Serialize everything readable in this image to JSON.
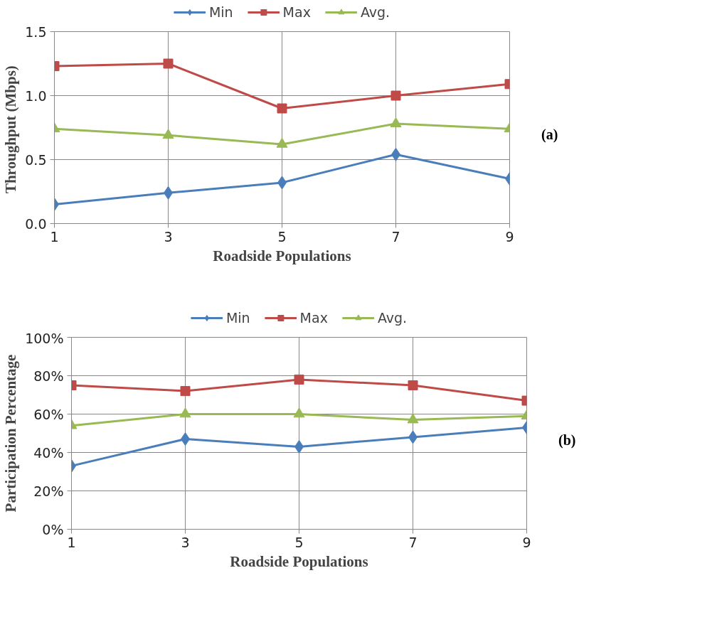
{
  "chart_data": [
    {
      "type": "line",
      "xlabel": "Roadside Populations",
      "ylabel": "Throughput  (Mbps)",
      "x": [
        1,
        3,
        5,
        7,
        9
      ],
      "xlim": [
        1,
        9
      ],
      "xticks": [
        1,
        3,
        5,
        7,
        9
      ],
      "ylim": [
        0,
        1.5
      ],
      "yticks": [
        {
          "value": 0,
          "label": "0.0"
        },
        {
          "value": 0.5,
          "label": "0.5"
        },
        {
          "value": 1,
          "label": "1.0"
        },
        {
          "value": 1.5,
          "label": "1.5"
        }
      ],
      "grid": true,
      "legend": "top",
      "annotations": [
        "(a)"
      ],
      "series": [
        {
          "name": "Min",
          "color": "#4a7ebb",
          "marker": "diamond",
          "values": [
            0.15,
            0.24,
            0.32,
            0.54,
            0.35
          ]
        },
        {
          "name": "Max",
          "color": "#be4b48",
          "marker": "square",
          "values": [
            1.23,
            1.25,
            0.9,
            1.0,
            1.09
          ]
        },
        {
          "name": "Avg.",
          "color": "#98b954",
          "marker": "triangle",
          "values": [
            0.74,
            0.69,
            0.62,
            0.78,
            0.74
          ]
        }
      ]
    },
    {
      "type": "line",
      "xlabel": "Roadside Populations",
      "ylabel": "Participation Percentage",
      "x": [
        1,
        3,
        5,
        7,
        9
      ],
      "xlim": [
        1,
        9
      ],
      "xticks": [
        1,
        3,
        5,
        7,
        9
      ],
      "ylim": [
        0,
        100
      ],
      "yticks": [
        {
          "value": 0,
          "label": "0%"
        },
        {
          "value": 20,
          "label": "20%"
        },
        {
          "value": 40,
          "label": "40%"
        },
        {
          "value": 60,
          "label": "60%"
        },
        {
          "value": 80,
          "label": "80%"
        },
        {
          "value": 100,
          "label": "100%"
        }
      ],
      "grid": true,
      "legend": "top",
      "annotations": [
        "(b)"
      ],
      "series": [
        {
          "name": "Min",
          "color": "#4a7ebb",
          "marker": "diamond",
          "values": [
            33,
            47,
            43,
            48,
            53
          ]
        },
        {
          "name": "Max",
          "color": "#be4b48",
          "marker": "square",
          "values": [
            75,
            72,
            78,
            75,
            67
          ]
        },
        {
          "name": "Avg.",
          "color": "#98b954",
          "marker": "triangle",
          "values": [
            54,
            60,
            60,
            57,
            59
          ]
        }
      ]
    }
  ]
}
